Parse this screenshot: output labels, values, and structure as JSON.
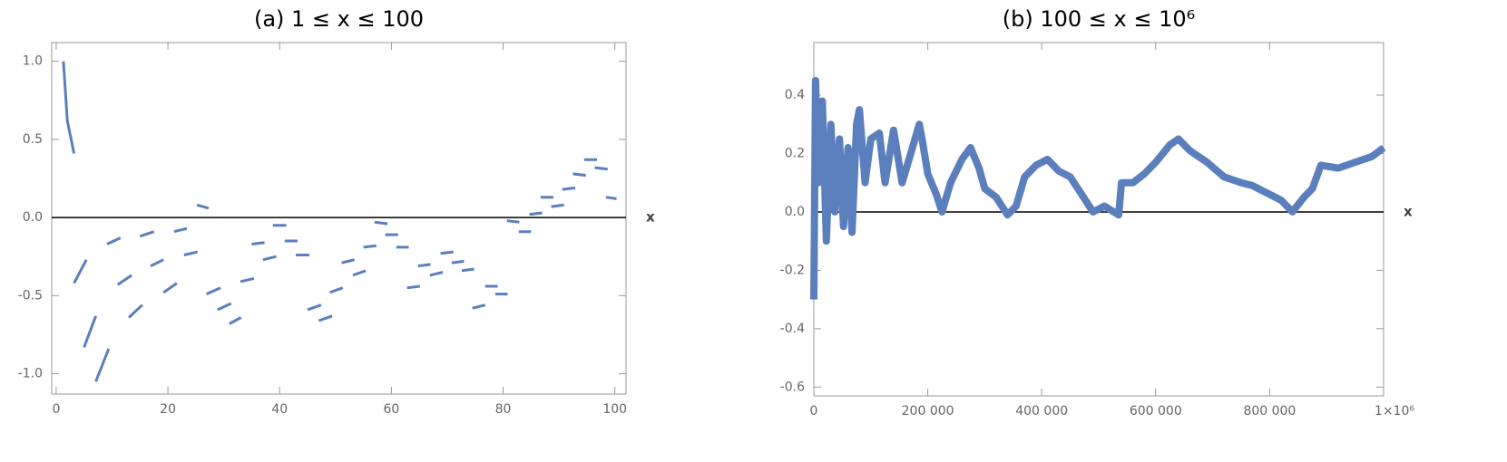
{
  "chart_data": [
    {
      "type": "line",
      "title": "(a) 1 ≤ x ≤ 100",
      "xlabel": "x",
      "color": "#5b7fbd",
      "xlim": [
        -0.8,
        102
      ],
      "ylim": [
        -1.13,
        1.12
      ],
      "xticks": [
        0,
        20,
        40,
        60,
        80,
        100
      ],
      "yticks": [
        {
          "value": 1,
          "label": "1.0"
        },
        0.5,
        {
          "value": 0,
          "label": "0.0"
        },
        -0.5,
        {
          "value": -1,
          "label": "-1.0"
        }
      ],
      "x": [
        1.3,
        2.0,
        3.2,
        null,
        3.2,
        5.4,
        null,
        5.0,
        7.1,
        null,
        7.1,
        9.4,
        null,
        9.1,
        11.5,
        null,
        11.0,
        13.5,
        null,
        13.0,
        15.4,
        null,
        15.0,
        17.5,
        null,
        16.9,
        19.2,
        null,
        19.2,
        21.6,
        null,
        21.1,
        23.4,
        null,
        22.9,
        25.3,
        null,
        25.2,
        27.3,
        null,
        26.9,
        29.4,
        null,
        28.9,
        31.3,
        null,
        31.0,
        33.1,
        null,
        33.0,
        35.4,
        null,
        35.0,
        37.3,
        null,
        37.0,
        39.4,
        null,
        38.8,
        41.2,
        null,
        40.9,
        43.2,
        null,
        42.9,
        45.3,
        null,
        45.0,
        47.4,
        null,
        47.0,
        49.4,
        null,
        49.0,
        51.3,
        null,
        51.1,
        53.4,
        null,
        53.1,
        55.4,
        null,
        55.0,
        57.3,
        null,
        57.0,
        59.3,
        null,
        58.9,
        61.2,
        null,
        60.9,
        63.1,
        null,
        62.8,
        65.1,
        null,
        64.8,
        67.0,
        null,
        66.9,
        69.2,
        null,
        68.8,
        71.1,
        null,
        70.8,
        73.0,
        null,
        72.6,
        74.8,
        null,
        74.5,
        76.8,
        null,
        76.8,
        79.0,
        null,
        78.6,
        80.8,
        null,
        80.7,
        82.9,
        null,
        82.8,
        85.0,
        null,
        84.7,
        87.0,
        null,
        86.7,
        89.0,
        null,
        88.6,
        90.9,
        null,
        90.6,
        92.9,
        null,
        92.5,
        94.8,
        null,
        94.5,
        96.8,
        null,
        96.4,
        98.7,
        null,
        98.4,
        100.3
      ],
      "values": [
        1.0,
        0.62,
        0.41,
        null,
        -0.42,
        -0.27,
        null,
        -0.83,
        -0.63,
        null,
        -1.05,
        -0.84,
        null,
        -0.17,
        -0.13,
        null,
        -0.43,
        -0.37,
        null,
        -0.64,
        -0.56,
        null,
        -0.12,
        -0.09,
        null,
        -0.31,
        -0.27,
        null,
        -0.48,
        -0.42,
        null,
        -0.09,
        -0.07,
        null,
        -0.24,
        -0.22,
        null,
        0.08,
        0.06,
        null,
        -0.49,
        -0.45,
        null,
        -0.59,
        -0.55,
        null,
        -0.68,
        -0.64,
        null,
        -0.41,
        -0.39,
        null,
        -0.17,
        -0.16,
        null,
        -0.27,
        -0.25,
        null,
        -0.05,
        -0.05,
        null,
        -0.15,
        -0.15,
        null,
        -0.24,
        -0.24,
        null,
        -0.59,
        -0.56,
        null,
        -0.66,
        -0.63,
        null,
        -0.48,
        -0.45,
        null,
        -0.29,
        -0.27,
        null,
        -0.37,
        -0.34,
        null,
        -0.19,
        -0.18,
        null,
        -0.03,
        -0.04,
        null,
        -0.11,
        -0.11,
        null,
        -0.19,
        -0.19,
        null,
        -0.45,
        -0.44,
        null,
        -0.31,
        -0.3,
        null,
        -0.37,
        -0.35,
        null,
        -0.23,
        -0.22,
        null,
        -0.29,
        -0.28,
        null,
        -0.34,
        -0.33,
        null,
        -0.58,
        -0.56,
        null,
        -0.44,
        -0.44,
        null,
        -0.49,
        -0.49,
        null,
        -0.02,
        -0.03,
        null,
        -0.09,
        -0.09,
        null,
        0.02,
        0.03,
        null,
        0.13,
        0.13,
        null,
        0.07,
        0.08,
        null,
        0.18,
        0.19,
        null,
        0.28,
        0.27,
        null,
        0.37,
        0.37,
        null,
        0.32,
        0.31,
        null,
        0.13,
        0.12
      ]
    },
    {
      "type": "line",
      "title": "(b) 100 ≤ x ≤ 10⁶",
      "xlabel": "x",
      "color": "#5b7fbd",
      "xlim": [
        0,
        1000000
      ],
      "ylim": [
        -0.63,
        0.58
      ],
      "xticks": [
        0,
        {
          "value": 200000,
          "label": "200 000"
        },
        {
          "value": 400000,
          "label": "400 000"
        },
        {
          "value": 600000,
          "label": "600 000"
        },
        {
          "value": 800000,
          "label": "800 000"
        },
        {
          "value": 1000000,
          "label": "1×10⁶"
        }
      ],
      "yticks": [
        0.4,
        0.2,
        {
          "value": 0,
          "label": "0.0"
        },
        -0.2,
        -0.4,
        -0.6
      ],
      "x": [
        0,
        3000,
        8000,
        15000,
        22000,
        30000,
        37000,
        45000,
        52000,
        60000,
        67000,
        75000,
        80000,
        90000,
        100000,
        115000,
        125000,
        140000,
        155000,
        170000,
        185000,
        190000,
        200000,
        215000,
        225000,
        240000,
        260000,
        275000,
        290000,
        300000,
        320000,
        340000,
        355000,
        370000,
        390000,
        410000,
        430000,
        450000,
        470000,
        490000,
        510000,
        535000,
        540000,
        560000,
        580000,
        600000,
        625000,
        640000,
        660000,
        690000,
        720000,
        750000,
        770000,
        780000,
        800000,
        820000,
        840000,
        860000,
        875000,
        890000,
        920000,
        950000,
        980000,
        1000000
      ],
      "values": [
        -0.3,
        0.45,
        0.1,
        0.38,
        -0.1,
        0.3,
        0.0,
        0.25,
        -0.05,
        0.22,
        -0.07,
        0.3,
        0.35,
        0.1,
        0.25,
        0.27,
        0.1,
        0.28,
        0.1,
        0.2,
        0.3,
        0.25,
        0.13,
        0.06,
        0.0,
        0.1,
        0.18,
        0.22,
        0.15,
        0.08,
        0.05,
        -0.01,
        0.02,
        0.12,
        0.16,
        0.18,
        0.14,
        0.12,
        0.06,
        0.0,
        0.02,
        -0.01,
        0.1,
        0.1,
        0.13,
        0.17,
        0.23,
        0.25,
        0.21,
        0.17,
        0.12,
        0.1,
        0.09,
        0.08,
        0.06,
        0.04,
        0.0,
        0.05,
        0.08,
        0.16,
        0.15,
        0.17,
        0.19,
        0.22
      ]
    }
  ]
}
